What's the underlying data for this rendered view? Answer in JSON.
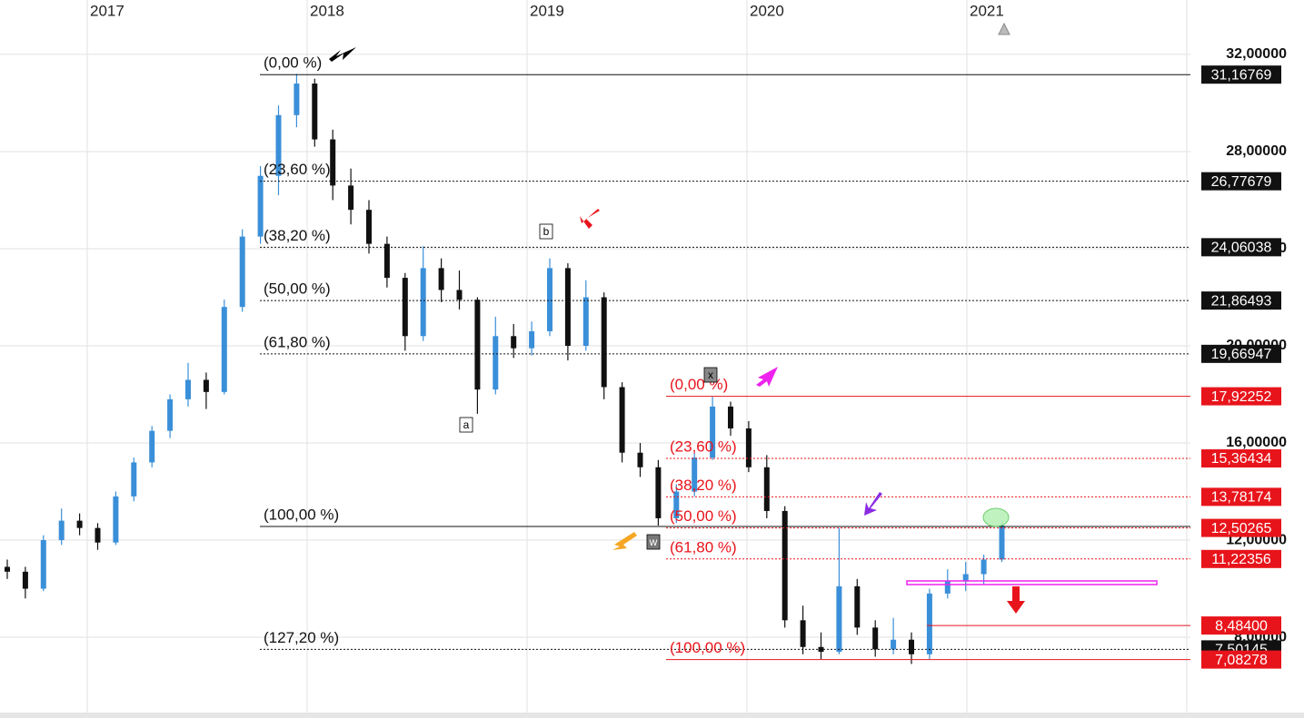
{
  "chart_data": {
    "type": "candlestick",
    "x_labels": [
      "2017",
      "2018",
      "2019",
      "2020",
      "2021"
    ],
    "ylim": [
      4.9,
      34.24
    ],
    "yticks": [
      {
        "value": 8,
        "label": "8,00000"
      },
      {
        "value": 12,
        "label": "12,00000"
      },
      {
        "value": 16,
        "label": "16,00000"
      },
      {
        "value": 20,
        "label": "20,00000"
      },
      {
        "value": 24,
        "label": "24,00000"
      },
      {
        "value": 28,
        "label": "28,00000"
      },
      {
        "value": 32,
        "label": "32,00000"
      }
    ],
    "grid": true,
    "up_color": "#3a8fd9",
    "down_color": "#111111",
    "candles": [
      [
        10.9,
        11.2,
        10.4,
        10.7
      ],
      [
        10.7,
        10.9,
        9.6,
        10.0
      ],
      [
        10.0,
        12.2,
        9.9,
        12.0
      ],
      [
        12.0,
        13.3,
        11.8,
        12.8
      ],
      [
        12.8,
        13.1,
        12.2,
        12.5
      ],
      [
        12.5,
        12.7,
        11.6,
        11.9
      ],
      [
        11.9,
        14.0,
        11.8,
        13.8
      ],
      [
        13.8,
        15.4,
        13.6,
        15.2
      ],
      [
        15.2,
        16.7,
        15.0,
        16.5
      ],
      [
        16.5,
        18.0,
        16.2,
        17.8
      ],
      [
        17.8,
        19.3,
        17.5,
        18.6
      ],
      [
        18.6,
        18.9,
        17.4,
        18.1
      ],
      [
        18.1,
        21.9,
        18.0,
        21.6
      ],
      [
        21.6,
        24.8,
        21.4,
        24.5
      ],
      [
        24.5,
        27.4,
        24.2,
        27.0
      ],
      [
        27.0,
        29.9,
        26.2,
        29.5
      ],
      [
        29.5,
        31.2,
        29.0,
        30.8
      ],
      [
        30.8,
        31.0,
        28.2,
        28.5
      ],
      [
        28.5,
        28.9,
        26.0,
        26.6
      ],
      [
        26.6,
        27.3,
        25.0,
        25.6
      ],
      [
        25.6,
        26.0,
        23.8,
        24.2
      ],
      [
        24.2,
        24.5,
        22.4,
        22.8
      ],
      [
        22.8,
        23.0,
        19.8,
        20.4
      ],
      [
        20.4,
        24.1,
        20.2,
        23.2
      ],
      [
        23.2,
        23.6,
        21.8,
        22.3
      ],
      [
        22.3,
        23.1,
        21.5,
        21.9
      ],
      [
        21.9,
        22.0,
        17.2,
        18.2
      ],
      [
        18.2,
        21.2,
        18.0,
        20.4
      ],
      [
        20.4,
        20.9,
        19.5,
        19.9
      ],
      [
        19.9,
        21.0,
        19.6,
        20.6
      ],
      [
        20.6,
        23.6,
        20.4,
        23.2
      ],
      [
        23.2,
        23.4,
        19.4,
        20.0
      ],
      [
        20.0,
        22.7,
        19.8,
        22.0
      ],
      [
        22.0,
        22.2,
        17.8,
        18.3
      ],
      [
        18.3,
        18.5,
        15.2,
        15.6
      ],
      [
        15.6,
        16.0,
        14.6,
        15.0
      ],
      [
        15.0,
        15.3,
        12.6,
        12.9
      ],
      [
        12.9,
        14.3,
        12.7,
        14.0
      ],
      [
        14.0,
        15.6,
        13.8,
        15.4
      ],
      [
        15.4,
        17.9,
        15.3,
        17.5
      ],
      [
        17.5,
        17.7,
        16.3,
        16.6
      ],
      [
        16.6,
        16.9,
        14.8,
        15.0
      ],
      [
        15.0,
        15.5,
        12.9,
        13.2
      ],
      [
        13.2,
        13.4,
        8.4,
        8.7
      ],
      [
        8.7,
        9.3,
        7.3,
        7.6
      ],
      [
        7.6,
        8.2,
        7.1,
        7.4
      ],
      [
        7.4,
        12.5,
        7.3,
        10.1
      ],
      [
        10.1,
        10.4,
        8.1,
        8.4
      ],
      [
        8.4,
        8.7,
        7.2,
        7.5
      ],
      [
        7.5,
        8.8,
        7.3,
        7.9
      ],
      [
        7.9,
        8.2,
        6.9,
        7.3
      ],
      [
        7.3,
        10.0,
        7.1,
        9.8
      ],
      [
        9.8,
        10.8,
        9.6,
        10.3
      ],
      [
        10.3,
        11.1,
        9.9,
        10.6
      ],
      [
        10.6,
        11.4,
        10.2,
        11.2
      ],
      [
        11.2,
        12.8,
        11.1,
        12.6
      ]
    ],
    "fib_black": {
      "color": "#111111",
      "levels": [
        {
          "label": "(0,00 %)",
          "value": 31.16769,
          "price_label": "31,16769",
          "solid": true
        },
        {
          "label": "(23,60 %)",
          "value": 26.77679,
          "price_label": "26,77679",
          "solid": false
        },
        {
          "label": "(38,20 %)",
          "value": 24.06038,
          "price_label": "24,06038",
          "solid": false
        },
        {
          "label": "(50,00 %)",
          "value": 21.86493,
          "price_label": "21,86493",
          "solid": false
        },
        {
          "label": "(61,80 %)",
          "value": 19.66947,
          "price_label": "19,66947",
          "solid": false
        },
        {
          "label": "(100,00 %)",
          "value": 12.5625,
          "solid": true
        },
        {
          "label": "(127,20 %)",
          "value": 7.50145,
          "price_label": "7,50145",
          "solid": false
        }
      ]
    },
    "fib_red": {
      "color": "#e8141b",
      "levels": [
        {
          "label": "(0,00 %)",
          "value": 17.92252,
          "price_label": "17,92252",
          "solid": true
        },
        {
          "label": "(23,60 %)",
          "value": 15.36434,
          "price_label": "15,36434",
          "solid": false
        },
        {
          "label": "(38,20 %)",
          "value": 13.78174,
          "price_label": "13,78174",
          "solid": false
        },
        {
          "label": "(50,00 %)",
          "value": 12.50265,
          "price_label": "12,50265",
          "solid": false
        },
        {
          "label": "(61,80 %)",
          "value": 11.22356,
          "price_label": "11,22356",
          "solid": false
        },
        {
          "label": "(100,00 %)",
          "value": 7.08278,
          "price_label": "7,08278",
          "solid": true
        }
      ]
    },
    "extra_level": {
      "value": 8.484,
      "price_label": "8,48400"
    },
    "wave_labels": [
      "a",
      "b",
      "x",
      "w"
    ]
  }
}
